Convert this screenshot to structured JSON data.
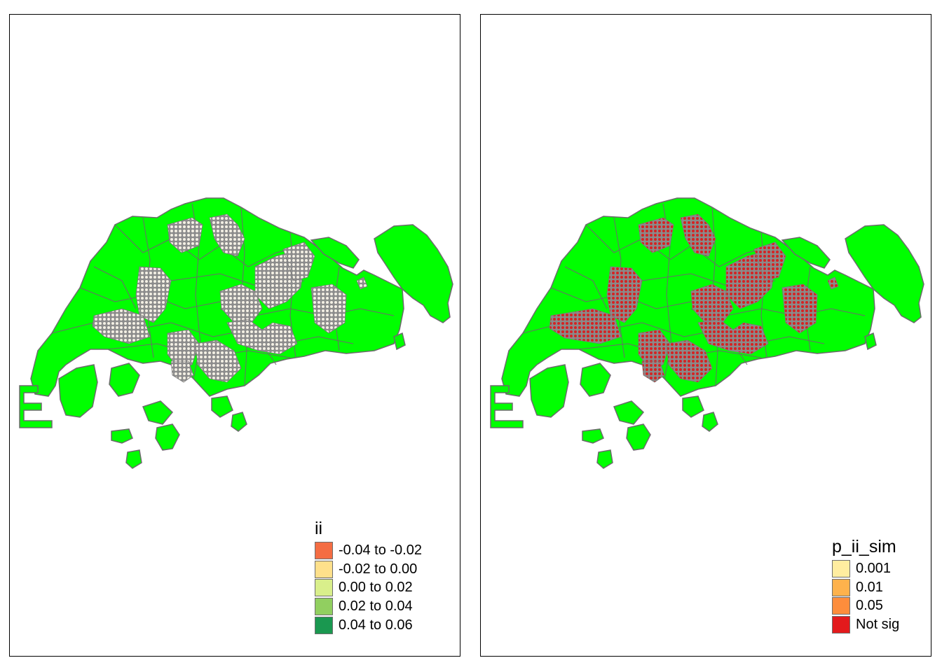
{
  "maps": [
    {
      "variable": "ii",
      "base_fill": "#00ff00",
      "outline_color": "#6b6b6b",
      "pattern": "white-dots-on-grey",
      "legend": {
        "title": "ii",
        "items": [
          {
            "label": "-0.04 to -0.02",
            "color": "#f46d43"
          },
          {
            "label": "-0.02 to 0.00",
            "color": "#fee08b"
          },
          {
            "label": "0.00 to 0.02",
            "color": "#d9ef8b"
          },
          {
            "label": "0.02 to 0.04",
            "color": "#91cf60"
          },
          {
            "label": "0.04 to 0.06",
            "color": "#1a9850"
          }
        ]
      }
    },
    {
      "variable": "p_ii_sim",
      "base_fill": "#00ff00",
      "outline_color": "#6b6b6b",
      "pattern": "red-dots-on-grey",
      "legend": {
        "title": "p_ii_sim",
        "items": [
          {
            "label": "0.001",
            "color": "#ffeda0"
          },
          {
            "label": "0.01",
            "color": "#feb24c"
          },
          {
            "label": "0.05",
            "color": "#fd8d3c"
          },
          {
            "label": "Not sig",
            "color": "#e31a1c"
          }
        ]
      }
    }
  ]
}
